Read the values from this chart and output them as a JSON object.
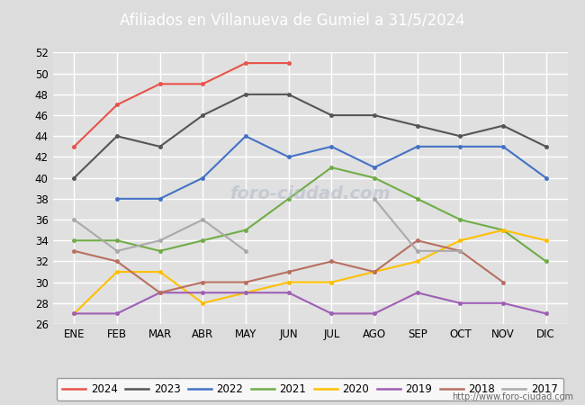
{
  "title": "Afiliados en Villanueva de Gumiel a 31/5/2024",
  "title_color": "#ffffff",
  "title_bg_color": "#4169b0",
  "xlabel": "",
  "ylabel": "",
  "ylim": [
    26,
    52
  ],
  "yticks": [
    26,
    28,
    30,
    32,
    34,
    36,
    38,
    40,
    42,
    44,
    46,
    48,
    50,
    52
  ],
  "months": [
    "ENE",
    "FEB",
    "MAR",
    "ABR",
    "MAY",
    "JUN",
    "JUL",
    "AGO",
    "SEP",
    "OCT",
    "NOV",
    "DIC"
  ],
  "series": {
    "2024": {
      "color": "#e8534a",
      "data": [
        43,
        47,
        49,
        49,
        51,
        51,
        null,
        null,
        null,
        null,
        null,
        null
      ]
    },
    "2023": {
      "color": "#555555",
      "data": [
        40,
        44,
        43,
        46,
        48,
        48,
        46,
        46,
        45,
        44,
        45,
        43
      ]
    },
    "2022": {
      "color": "#4472c4",
      "data": [
        null,
        38,
        38,
        40,
        44,
        42,
        43,
        41,
        43,
        43,
        43,
        40
      ]
    },
    "2021": {
      "color": "#70ad47",
      "data": [
        34,
        34,
        33,
        34,
        35,
        38,
        41,
        40,
        38,
        36,
        35,
        32
      ]
    },
    "2020": {
      "color": "#ffc000",
      "data": [
        27,
        31,
        31,
        28,
        29,
        30,
        30,
        31,
        32,
        34,
        35,
        34
      ]
    },
    "2019": {
      "color": "#9e5fb5",
      "data": [
        27,
        27,
        29,
        29,
        29,
        29,
        27,
        27,
        29,
        28,
        28,
        27
      ]
    },
    "2018": {
      "color": "#b87060",
      "data": [
        33,
        32,
        29,
        30,
        30,
        31,
        32,
        31,
        34,
        33,
        30,
        null
      ]
    },
    "2017": {
      "color": "#aaaaaa",
      "data": [
        36,
        33,
        34,
        36,
        33,
        null,
        null,
        38,
        33,
        33,
        null,
        null
      ]
    }
  },
  "watermark": "foro-ciudad.com",
  "url": "http://www.foro-ciudad.com",
  "fig_bg_color": "#dcdcdc",
  "plot_bg_color": "#e0e0e0",
  "grid_color": "#ffffff",
  "legend_years": [
    "2024",
    "2023",
    "2022",
    "2021",
    "2020",
    "2019",
    "2018",
    "2017"
  ]
}
